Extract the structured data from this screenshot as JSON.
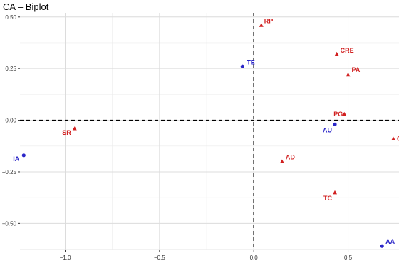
{
  "chart_data": {
    "type": "scatter",
    "title": "CA – Biplot",
    "xlabel": "",
    "ylabel": "",
    "xlim": [
      -1.24,
      0.77
    ],
    "ylim": [
      -0.63,
      0.52
    ],
    "grid": true,
    "x_ticks": [
      -1.0,
      -0.5,
      0.0,
      0.5
    ],
    "x_tick_labels": [
      "−1.0",
      "−0.5",
      "0.0",
      "0.5"
    ],
    "y_ticks": [
      0.5,
      0.25,
      0.0,
      -0.25,
      -0.5
    ],
    "y_tick_labels": [
      "0.50",
      "0.25",
      "0.00",
      "−0.25",
      "−0.50"
    ],
    "reference_lines": {
      "x": 0,
      "y": 0,
      "style": "dashed"
    },
    "series": [
      {
        "color": "#2b26c8",
        "marker": "circle",
        "points": [
          {
            "label": "TE",
            "x": -0.06,
            "y": 0.26
          },
          {
            "label": "AU",
            "x": 0.43,
            "y": -0.02
          },
          {
            "label": "IA",
            "x": -1.22,
            "y": -0.17
          },
          {
            "label": "AA",
            "x": 0.68,
            "y": -0.61
          }
        ]
      },
      {
        "color": "#d11f1f",
        "marker": "triangle",
        "points": [
          {
            "label": "RP",
            "x": 0.04,
            "y": 0.46
          },
          {
            "label": "CRE",
            "x": 0.44,
            "y": 0.32
          },
          {
            "label": "PA",
            "x": 0.5,
            "y": 0.22
          },
          {
            "label": "PG",
            "x": 0.48,
            "y": 0.03
          },
          {
            "label": "SR",
            "x": -0.95,
            "y": -0.04
          },
          {
            "label": "CE",
            "x": 0.74,
            "y": -0.09
          },
          {
            "label": "AD",
            "x": 0.15,
            "y": -0.2
          },
          {
            "label": "TC",
            "x": 0.43,
            "y": -0.35
          }
        ]
      }
    ]
  }
}
